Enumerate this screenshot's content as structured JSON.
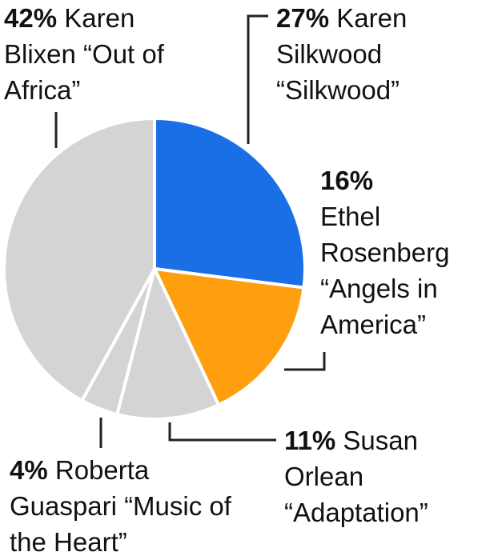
{
  "chart_data": {
    "type": "pie",
    "categories": [
      "Karen Silkwood “Silkwood”",
      "Ethel Rosenberg “Angels in America”",
      "Susan Orlean “Adaptation”",
      "Roberta Guaspari “Music of the Heart”",
      "Karen Blixen “Out of Africa”"
    ],
    "values": [
      27,
      16,
      11,
      4,
      42
    ],
    "value_labels": [
      "27%",
      "16%",
      "11%",
      "4%",
      "42%"
    ],
    "colors": [
      "#1a6fe6",
      "#ff9f0f",
      "#d4d4d4",
      "#d4d4d4",
      "#d4d4d4"
    ]
  }
}
